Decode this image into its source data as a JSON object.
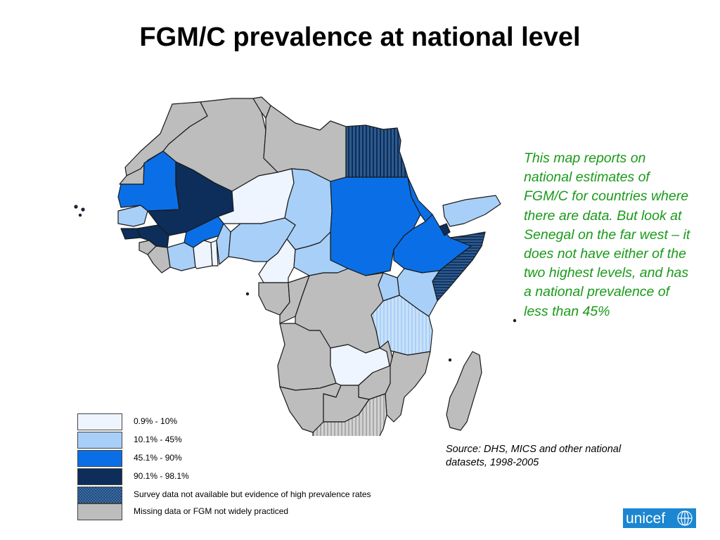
{
  "title": "FGM/C prevalence at national level",
  "note": "This map reports on national estimates of FGM/C for countries where there are data. But look at Senegal on the far west – it does not have either of the two highest levels, and has a national prevalence of less than 45%",
  "source": "Source: DHS, MICS and other national datasets, 1998-2005",
  "legend": [
    {
      "label": "0.9% - 10%",
      "color": "#eef5ff"
    },
    {
      "label": "10.1% - 45%",
      "color": "#a8cff7"
    },
    {
      "label": "45.1% - 90%",
      "color": "#0a6fe6"
    },
    {
      "label": "90.1% - 98.1%",
      "color": "#0d2d5a"
    },
    {
      "label": "Survey data not available but evidence of high prevalence rates",
      "color": "#2e5a8c"
    },
    {
      "label": "Missing data or FGM not widely practiced",
      "color": "#bdbdbd"
    }
  ],
  "logo_text": "unicef",
  "colors": {
    "very_light": "#eef5ff",
    "light": "#a8cff7",
    "medium": "#0a6fe6",
    "dark": "#0d2d5a",
    "hatched": "#2e5a8c",
    "grey": "#bdbdbd",
    "note_green": "#1a9a1a",
    "unicef_blue": "#1c86d1"
  }
}
